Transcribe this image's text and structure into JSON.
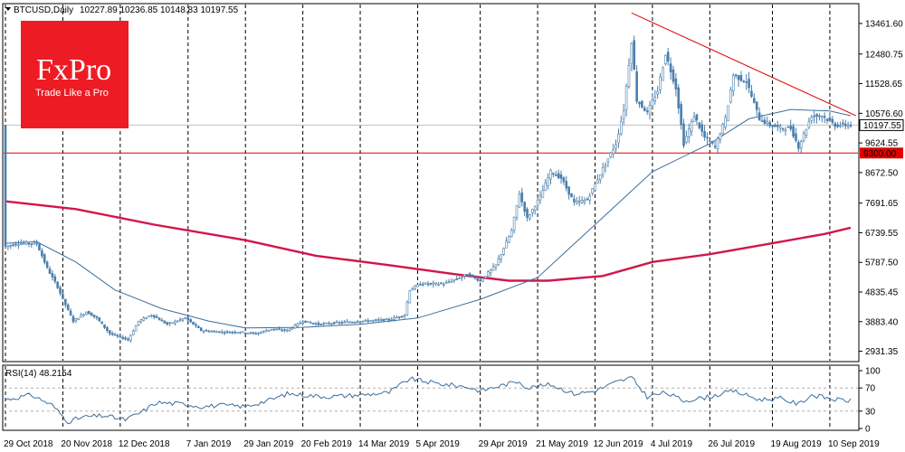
{
  "header": {
    "symbol": "BTCUSD,Daily",
    "ohlc": "10227.89 10236.85 10148.83 10197.55"
  },
  "logo": {
    "brand": "FxPro",
    "tagline": "Trade Like a Pro",
    "color": "#ed1c24"
  },
  "colors": {
    "candle": "#4a7fae",
    "ma_fast": "#3c6e9c",
    "ma_slow": "#d2164a",
    "trendline": "#e00000",
    "support": "#e00000",
    "rsi": "#3c6e9c",
    "grid": "#000000",
    "label_bg": "#e00000"
  },
  "chart_data": {
    "type": "candlestick",
    "price_axis": {
      "ticks": [
        "13461.60",
        "12480.75",
        "11528.65",
        "10576.60",
        "9624.55",
        "8672.50",
        "7691.65",
        "6739.55",
        "5787.50",
        "4835.45",
        "3883.40",
        "2931.35"
      ],
      "range": [
        2600,
        14100
      ]
    },
    "current_price": {
      "label": "10197.55",
      "value": 10197.55
    },
    "support": {
      "label": "9300.00",
      "value": 9300
    },
    "x_axis": {
      "start": "2018-10-29",
      "end": "2019-09-18",
      "labels": [
        "29 Oct 2018",
        "20 Nov 2018",
        "12 Dec 2018",
        "7 Jan 2019",
        "29 Jan 2019",
        "20 Feb 2019",
        "14 Mar 2019",
        "5 Apr 2019",
        "29 Apr 2019",
        "21 May 2019",
        "12 Jun 2019",
        "4 Jul 2019",
        "26 Jul 2019",
        "19 Aug 2019",
        "10 Sep 2019"
      ],
      "label_dates": [
        "2018-10-29",
        "2018-11-20",
        "2018-12-12",
        "2019-01-07",
        "2019-01-29",
        "2019-02-20",
        "2019-03-14",
        "2019-04-05",
        "2019-04-29",
        "2019-05-21",
        "2019-06-12",
        "2019-07-04",
        "2019-07-26",
        "2019-08-19",
        "2019-09-10"
      ]
    },
    "price_path": [
      [
        "2018-10-29",
        6300
      ],
      [
        "2018-11-03",
        6400
      ],
      [
        "2018-11-10",
        6400
      ],
      [
        "2018-11-14",
        5600
      ],
      [
        "2018-11-18",
        5000
      ],
      [
        "2018-11-20",
        4600
      ],
      [
        "2018-11-24",
        3900
      ],
      [
        "2018-11-29",
        4200
      ],
      [
        "2018-12-03",
        4000
      ],
      [
        "2018-12-08",
        3500
      ],
      [
        "2018-12-15",
        3300
      ],
      [
        "2018-12-19",
        3900
      ],
      [
        "2018-12-24",
        4100
      ],
      [
        "2018-12-30",
        3800
      ],
      [
        "2019-01-06",
        4000
      ],
      [
        "2019-01-12",
        3600
      ],
      [
        "2019-01-20",
        3550
      ],
      [
        "2019-01-27",
        3550
      ],
      [
        "2019-02-02",
        3500
      ],
      [
        "2019-02-08",
        3650
      ],
      [
        "2019-02-14",
        3600
      ],
      [
        "2019-02-20",
        3900
      ],
      [
        "2019-02-26",
        3800
      ],
      [
        "2019-03-05",
        3850
      ],
      [
        "2019-03-14",
        3900
      ],
      [
        "2019-03-25",
        3950
      ],
      [
        "2019-03-31",
        4100
      ],
      [
        "2019-04-02",
        4900
      ],
      [
        "2019-04-06",
        5100
      ],
      [
        "2019-04-15",
        5100
      ],
      [
        "2019-04-24",
        5400
      ],
      [
        "2019-04-29",
        5200
      ],
      [
        "2019-05-05",
        5700
      ],
      [
        "2019-05-11",
        6800
      ],
      [
        "2019-05-14",
        8000
      ],
      [
        "2019-05-17",
        7200
      ],
      [
        "2019-05-22",
        7900
      ],
      [
        "2019-05-26",
        8700
      ],
      [
        "2019-05-30",
        8500
      ],
      [
        "2019-06-04",
        7700
      ],
      [
        "2019-06-09",
        7800
      ],
      [
        "2019-06-15",
        8800
      ],
      [
        "2019-06-20",
        9600
      ],
      [
        "2019-06-23",
        10700
      ],
      [
        "2019-06-26",
        12900
      ],
      [
        "2019-06-28",
        11000
      ],
      [
        "2019-07-02",
        10600
      ],
      [
        "2019-07-06",
        11300
      ],
      [
        "2019-07-09",
        12500
      ],
      [
        "2019-07-13",
        11400
      ],
      [
        "2019-07-16",
        9600
      ],
      [
        "2019-07-20",
        10500
      ],
      [
        "2019-07-24",
        9800
      ],
      [
        "2019-07-28",
        9500
      ],
      [
        "2019-08-01",
        10400
      ],
      [
        "2019-08-04",
        11800
      ],
      [
        "2019-08-09",
        11600
      ],
      [
        "2019-08-14",
        10400
      ],
      [
        "2019-08-18",
        10200
      ],
      [
        "2019-08-22",
        10100
      ],
      [
        "2019-08-26",
        10100
      ],
      [
        "2019-08-29",
        9500
      ],
      [
        "2019-09-03",
        10500
      ],
      [
        "2019-09-07",
        10500
      ],
      [
        "2019-09-12",
        10200
      ],
      [
        "2019-09-18",
        10197
      ]
    ],
    "ma_fast": [
      [
        "2018-10-29",
        6400
      ],
      [
        "2018-11-10",
        6450
      ],
      [
        "2018-11-25",
        5800
      ],
      [
        "2018-12-10",
        4900
      ],
      [
        "2018-12-28",
        4300
      ],
      [
        "2019-01-15",
        3900
      ],
      [
        "2019-01-29",
        3680
      ],
      [
        "2019-02-20",
        3700
      ],
      [
        "2019-03-14",
        3800
      ],
      [
        "2019-04-05",
        4000
      ],
      [
        "2019-04-29",
        4600
      ],
      [
        "2019-05-21",
        5300
      ],
      [
        "2019-06-12",
        7000
      ],
      [
        "2019-07-04",
        8700
      ],
      [
        "2019-07-26",
        9600
      ],
      [
        "2019-08-10",
        10400
      ],
      [
        "2019-08-26",
        10700
      ],
      [
        "2019-09-10",
        10650
      ],
      [
        "2019-09-18",
        10500
      ]
    ],
    "ma_slow": [
      [
        "2018-10-29",
        7750
      ],
      [
        "2018-11-25",
        7500
      ],
      [
        "2018-12-25",
        7000
      ],
      [
        "2019-01-29",
        6500
      ],
      [
        "2019-02-25",
        6000
      ],
      [
        "2019-03-25",
        5700
      ],
      [
        "2019-04-20",
        5400
      ],
      [
        "2019-05-10",
        5200
      ],
      [
        "2019-05-25",
        5200
      ],
      [
        "2019-06-15",
        5350
      ],
      [
        "2019-07-04",
        5800
      ],
      [
        "2019-07-26",
        6050
      ],
      [
        "2019-08-19",
        6400
      ],
      [
        "2019-09-08",
        6700
      ],
      [
        "2019-09-18",
        6900
      ]
    ],
    "trendline": [
      [
        "2019-06-26",
        13800
      ],
      [
        "2019-09-20",
        10500
      ]
    ],
    "rsi": {
      "label": "RSI(14) 48.2154",
      "ticks": [
        "100",
        "70",
        "30",
        "0"
      ],
      "levels": [
        30,
        70
      ],
      "series": [
        [
          "2018-10-29",
          50
        ],
        [
          "2018-11-08",
          58
        ],
        [
          "2018-11-16",
          40
        ],
        [
          "2018-11-22",
          12
        ],
        [
          "2018-11-28",
          20
        ],
        [
          "2018-12-06",
          22
        ],
        [
          "2018-12-14",
          15
        ],
        [
          "2018-12-20",
          28
        ],
        [
          "2018-12-26",
          45
        ],
        [
          "2019-01-06",
          42
        ],
        [
          "2019-01-12",
          38
        ],
        [
          "2019-01-20",
          40
        ],
        [
          "2019-01-29",
          38
        ],
        [
          "2019-02-08",
          50
        ],
        [
          "2019-02-14",
          60
        ],
        [
          "2019-02-20",
          58
        ],
        [
          "2019-03-01",
          55
        ],
        [
          "2019-03-14",
          58
        ],
        [
          "2019-03-25",
          62
        ],
        [
          "2019-04-02",
          86
        ],
        [
          "2019-04-12",
          78
        ],
        [
          "2019-04-24",
          72
        ],
        [
          "2019-04-29",
          65
        ],
        [
          "2019-05-05",
          72
        ],
        [
          "2019-05-14",
          82
        ],
        [
          "2019-05-17",
          70
        ],
        [
          "2019-05-26",
          76
        ],
        [
          "2019-06-04",
          60
        ],
        [
          "2019-06-12",
          65
        ],
        [
          "2019-06-20",
          80
        ],
        [
          "2019-06-26",
          88
        ],
        [
          "2019-07-02",
          55
        ],
        [
          "2019-07-09",
          62
        ],
        [
          "2019-07-16",
          48
        ],
        [
          "2019-07-26",
          55
        ],
        [
          "2019-08-04",
          65
        ],
        [
          "2019-08-14",
          50
        ],
        [
          "2019-08-22",
          52
        ],
        [
          "2019-08-29",
          42
        ],
        [
          "2019-09-03",
          58
        ],
        [
          "2019-09-12",
          50
        ],
        [
          "2019-09-18",
          48
        ]
      ]
    }
  }
}
